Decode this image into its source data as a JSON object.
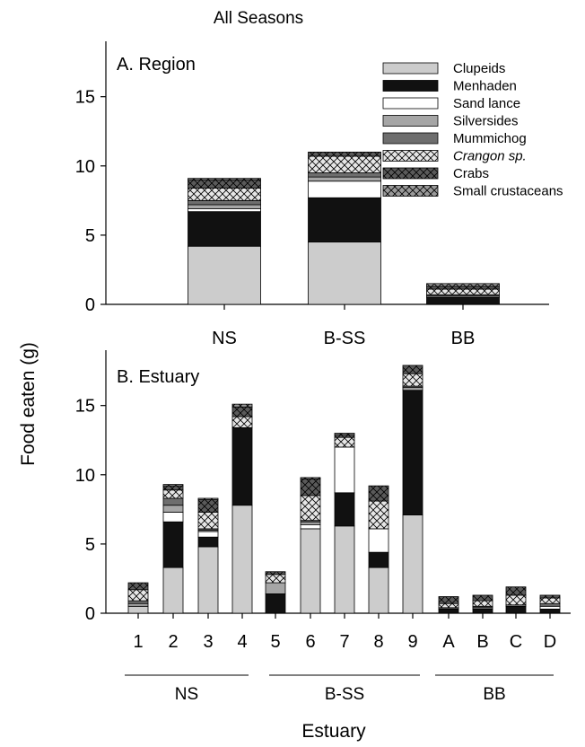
{
  "figure_title": "All Seasons",
  "ylabel": "Food eaten (g)",
  "xlabel": "Estuary",
  "legend": {
    "entries": [
      {
        "name": "Clupeids",
        "color": "#cccccc",
        "pattern": "solid"
      },
      {
        "name": "Menhaden",
        "color": "#111111",
        "pattern": "solid"
      },
      {
        "name": "Sand lance",
        "color": "#ffffff",
        "pattern": "solid"
      },
      {
        "name": "Silversides",
        "color": "#a6a6a6",
        "pattern": "solid"
      },
      {
        "name": "Mummichog",
        "color": "#6e6e6e",
        "pattern": "solid"
      },
      {
        "name": "Crangon sp.",
        "color": "#e6e6e6",
        "pattern": "crosshatch",
        "italic": true
      },
      {
        "name": "Crabs",
        "color": "#5a5a5a",
        "pattern": "crosshatch"
      },
      {
        "name": "Small crustaceans",
        "color": "#9a9a9a",
        "pattern": "crosshatch"
      }
    ]
  },
  "chart_data": [
    {
      "type": "bar",
      "stacked": true,
      "title": "A.  Region",
      "categories": [
        "NS",
        "B-SS",
        "BB"
      ],
      "ylim": [
        0,
        19
      ],
      "yticks": [
        0,
        5,
        10,
        15
      ],
      "series": [
        {
          "name": "Clupeids",
          "values": [
            4.2,
            4.5,
            0
          ]
        },
        {
          "name": "Menhaden",
          "values": [
            2.5,
            3.2,
            0.5
          ]
        },
        {
          "name": "Sand lance",
          "values": [
            0.2,
            1.2,
            0
          ]
        },
        {
          "name": "Silversides",
          "values": [
            0.3,
            0.3,
            0.1
          ]
        },
        {
          "name": "Mummichog",
          "values": [
            0.3,
            0.3,
            0.1
          ]
        },
        {
          "name": "Crangon sp.",
          "values": [
            0.9,
            1.2,
            0.4
          ]
        },
        {
          "name": "Crabs",
          "values": [
            0.6,
            0.3,
            0.2
          ]
        },
        {
          "name": "Small crustaceans",
          "values": [
            0.1,
            0.0,
            0.2
          ]
        }
      ]
    },
    {
      "type": "bar",
      "stacked": true,
      "title": "B.  Estuary",
      "categories": [
        "1",
        "2",
        "3",
        "4",
        "5",
        "6",
        "7",
        "8",
        "9",
        "A",
        "B",
        "C",
        "D"
      ],
      "ylim": [
        0,
        19
      ],
      "yticks": [
        0,
        5,
        10,
        15
      ],
      "groups": [
        {
          "label": "NS",
          "categories": [
            "1",
            "2",
            "3",
            "4"
          ]
        },
        {
          "label": "B-SS",
          "categories": [
            "5",
            "6",
            "7",
            "8",
            "9"
          ]
        },
        {
          "label": "BB",
          "categories": [
            "A",
            "B",
            "C",
            "D"
          ]
        }
      ],
      "series": [
        {
          "name": "Clupeids",
          "values": [
            0.5,
            3.3,
            4.8,
            7.8,
            0,
            6.1,
            6.3,
            3.3,
            7.1,
            0,
            0,
            0,
            0
          ]
        },
        {
          "name": "Menhaden",
          "values": [
            0,
            3.3,
            0.7,
            5.6,
            1.4,
            0,
            2.4,
            1.1,
            9.0,
            0.3,
            0.3,
            0.5,
            0.3
          ]
        },
        {
          "name": "Sand lance",
          "values": [
            0,
            0.7,
            0.4,
            0,
            0,
            0.3,
            3.3,
            1.7,
            0,
            0,
            0,
            0,
            0.2
          ]
        },
        {
          "name": "Silversides",
          "values": [
            0.2,
            0.5,
            0.1,
            0,
            0.8,
            0.2,
            0,
            0,
            0.2,
            0,
            0.1,
            0.1,
            0
          ]
        },
        {
          "name": "Mummichog",
          "values": [
            0.2,
            0.5,
            0.1,
            0,
            0,
            0.1,
            0,
            0,
            0.1,
            0.1,
            0.1,
            0,
            0.2
          ]
        },
        {
          "name": "Crangon sp.",
          "values": [
            0.8,
            0.6,
            1.2,
            0.8,
            0.6,
            1.8,
            0.7,
            2.0,
            0.9,
            0.3,
            0.4,
            0.7,
            0.4
          ]
        },
        {
          "name": "Crabs",
          "values": [
            0.5,
            0.3,
            0.9,
            0.7,
            0.2,
            1.2,
            0.2,
            1.1,
            0.6,
            0.5,
            0.4,
            0.6,
            0.2
          ]
        },
        {
          "name": "Small crustaceans",
          "values": [
            0,
            0.1,
            0.1,
            0.2,
            0,
            0.1,
            0.1,
            0,
            0,
            0,
            0,
            0,
            0
          ]
        }
      ]
    }
  ]
}
